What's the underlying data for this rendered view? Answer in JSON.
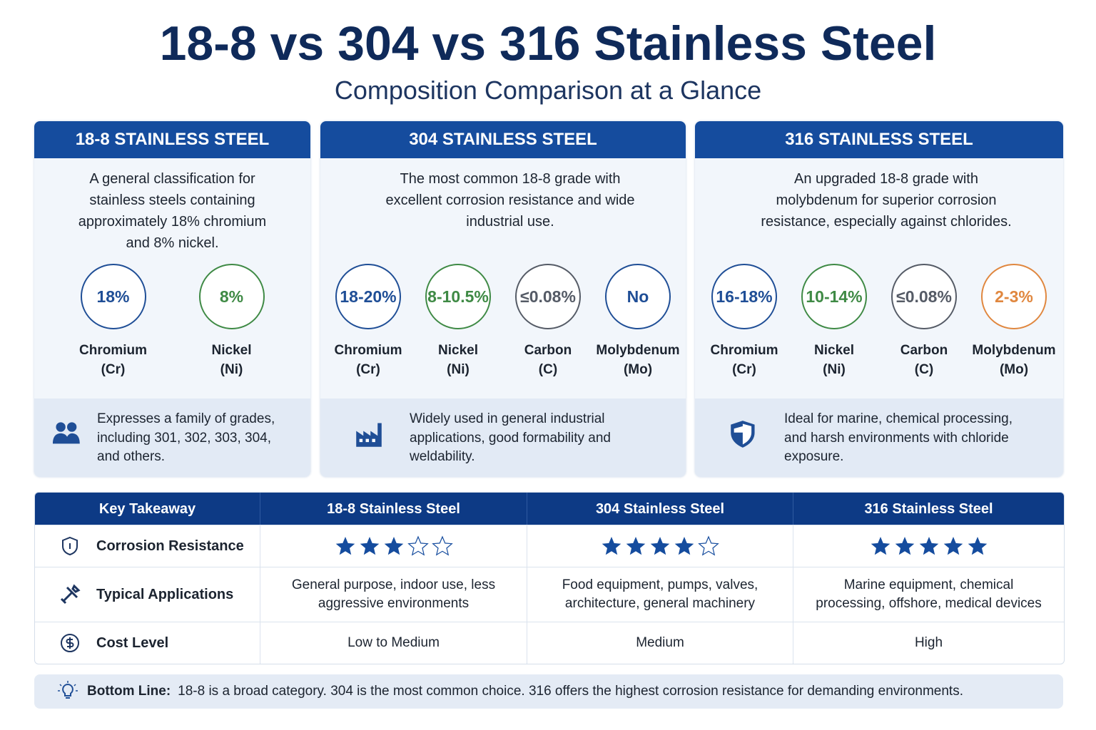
{
  "header": {
    "title": "18-8 vs 304 vs 316 Stainless Steel",
    "subtitle": "Composition Comparison at a Glance"
  },
  "cards": [
    {
      "title": "18-8 STAINLESS STEEL",
      "description": "A general classification for stainless steels containing approximately 18% chromium and 8% nickel.",
      "elements": [
        {
          "value": "18%",
          "name": "Chromium",
          "symbol": "(Cr)",
          "color": "#1f4e96"
        },
        {
          "value": "8%",
          "name": "Nickel",
          "symbol": "(Ni)",
          "color": "#3f8a45"
        }
      ],
      "note": "Expresses a family of grades, including 301, 302, 303, 304, and others."
    },
    {
      "title": "304 STAINLESS STEEL",
      "description": "The most common 18-8 grade with excellent corrosion resistance and wide industrial use.",
      "elements": [
        {
          "value": "18-20%",
          "name": "Chromium",
          "symbol": "(Cr)",
          "color": "#1f4e96"
        },
        {
          "value": "8-10.5%",
          "name": "Nickel",
          "symbol": "(Ni)",
          "color": "#3f8a45"
        },
        {
          "value": "≤0.08%",
          "name": "Carbon",
          "symbol": "(C)",
          "color": "#555b66"
        },
        {
          "value": "No",
          "name": "Molybdenum",
          "symbol": "(Mo)",
          "color": "#1f4e96"
        }
      ],
      "note": "Widely used in general industrial applications, good formability and weldability."
    },
    {
      "title": "316 STAINLESS STEEL",
      "description": "An upgraded 18-8 grade with molybdenum for superior corrosion resistance, especially against chlorides.",
      "elements": [
        {
          "value": "16-18%",
          "name": "Chromium",
          "symbol": "(Cr)",
          "color": "#1f4e96"
        },
        {
          "value": "10-14%",
          "name": "Nickel",
          "symbol": "(Ni)",
          "color": "#3f8a45"
        },
        {
          "value": "≤0.08%",
          "name": "Carbon",
          "symbol": "(C)",
          "color": "#555b66"
        },
        {
          "value": "2-3%",
          "name": "Molybdenum",
          "symbol": "(Mo)",
          "color": "#e0873f"
        }
      ],
      "note": "Ideal for marine, chemical processing, and harsh environments with chloride exposure."
    }
  ],
  "table": {
    "columns": [
      "Key Takeaway",
      "18-8 Stainless Steel",
      "304 Stainless Steel",
      "316 Stainless Steel"
    ],
    "stars_max": 5,
    "rows": [
      {
        "label": "Corrosion Resistance",
        "ratings": [
          3,
          4,
          5
        ]
      },
      {
        "label": "Typical Applications",
        "cells": [
          "General purpose, indoor use, less aggressive environments",
          "Food equipment, pumps, valves, architecture, general machinery",
          "Marine equipment, chemical processing, offshore, medical devices"
        ]
      },
      {
        "label": "Cost Level",
        "cells": [
          "Low to Medium",
          "Medium",
          "High"
        ]
      }
    ]
  },
  "bottom_line": {
    "label": "Bottom Line:",
    "text": "18-8 is a broad category. 304 is the most common choice. 316 offers the highest corrosion resistance for demanding environments."
  }
}
